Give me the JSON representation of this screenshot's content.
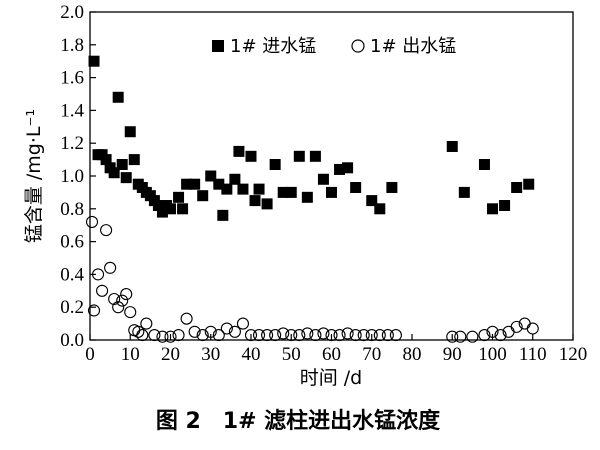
{
  "chart_data": {
    "type": "scatter",
    "xlabel": "时间 /d",
    "ylabel": "锰含量 /mg·L⁻¹",
    "caption": "图 2　1# 滤柱进出水锰浓度",
    "xlim": [
      0,
      120
    ],
    "ylim": [
      0,
      2.0
    ],
    "x_ticks": [
      "0",
      "10",
      "20",
      "30",
      "40",
      "50",
      "60",
      "70",
      "80",
      "90",
      "100",
      "110",
      "120"
    ],
    "y_ticks": [
      "0.0",
      "0.2",
      "0.4",
      "0.6",
      "0.8",
      "1.0",
      "1.2",
      "1.4",
      "1.6",
      "1.8",
      "2.0"
    ],
    "grid": false,
    "legend_position": "top",
    "series": [
      {
        "name": "1# 进水锰",
        "marker": "filled-square",
        "points": [
          [
            1,
            1.7
          ],
          [
            2,
            1.13
          ],
          [
            3,
            1.13
          ],
          [
            4,
            1.1
          ],
          [
            5,
            1.05
          ],
          [
            6,
            1.02
          ],
          [
            7,
            1.48
          ],
          [
            8,
            1.07
          ],
          [
            9,
            0.99
          ],
          [
            10,
            1.27
          ],
          [
            11,
            1.1
          ],
          [
            12,
            0.95
          ],
          [
            13,
            0.93
          ],
          [
            14,
            0.9
          ],
          [
            15,
            0.88
          ],
          [
            16,
            0.85
          ],
          [
            17,
            0.82
          ],
          [
            18,
            0.78
          ],
          [
            19,
            0.82
          ],
          [
            20,
            0.8
          ],
          [
            22,
            0.87
          ],
          [
            23,
            0.8
          ],
          [
            24,
            0.95
          ],
          [
            26,
            0.95
          ],
          [
            28,
            0.88
          ],
          [
            30,
            1.0
          ],
          [
            32,
            0.95
          ],
          [
            33,
            0.76
          ],
          [
            34,
            0.92
          ],
          [
            36,
            0.98
          ],
          [
            37,
            1.15
          ],
          [
            38,
            0.92
          ],
          [
            40,
            1.12
          ],
          [
            41,
            0.85
          ],
          [
            42,
            0.92
          ],
          [
            44,
            0.83
          ],
          [
            46,
            1.07
          ],
          [
            48,
            0.9
          ],
          [
            50,
            0.9
          ],
          [
            52,
            1.12
          ],
          [
            54,
            0.87
          ],
          [
            56,
            1.12
          ],
          [
            58,
            0.98
          ],
          [
            60,
            0.9
          ],
          [
            62,
            1.04
          ],
          [
            64,
            1.05
          ],
          [
            66,
            0.93
          ],
          [
            70,
            0.85
          ],
          [
            72,
            0.8
          ],
          [
            75,
            0.93
          ],
          [
            90,
            1.18
          ],
          [
            93,
            0.9
          ],
          [
            98,
            1.07
          ],
          [
            100,
            0.8
          ],
          [
            103,
            0.82
          ],
          [
            106,
            0.93
          ],
          [
            109,
            0.95
          ]
        ]
      },
      {
        "name": "1# 出水锰",
        "marker": "open-circle",
        "points": [
          [
            0.5,
            0.72
          ],
          [
            1,
            0.18
          ],
          [
            2,
            0.4
          ],
          [
            3,
            0.3
          ],
          [
            4,
            0.67
          ],
          [
            5,
            0.44
          ],
          [
            6,
            0.25
          ],
          [
            7,
            0.2
          ],
          [
            8,
            0.24
          ],
          [
            9,
            0.28
          ],
          [
            10,
            0.17
          ],
          [
            11,
            0.06
          ],
          [
            12,
            0.05
          ],
          [
            13,
            0.03
          ],
          [
            14,
            0.1
          ],
          [
            16,
            0.03
          ],
          [
            18,
            0.02
          ],
          [
            20,
            0.02
          ],
          [
            22,
            0.03
          ],
          [
            24,
            0.13
          ],
          [
            26,
            0.05
          ],
          [
            28,
            0.03
          ],
          [
            30,
            0.05
          ],
          [
            32,
            0.03
          ],
          [
            34,
            0.07
          ],
          [
            36,
            0.05
          ],
          [
            38,
            0.1
          ],
          [
            40,
            0.03
          ],
          [
            42,
            0.03
          ],
          [
            44,
            0.03
          ],
          [
            46,
            0.03
          ],
          [
            48,
            0.04
          ],
          [
            50,
            0.03
          ],
          [
            52,
            0.03
          ],
          [
            54,
            0.04
          ],
          [
            56,
            0.03
          ],
          [
            58,
            0.04
          ],
          [
            60,
            0.03
          ],
          [
            62,
            0.03
          ],
          [
            64,
            0.04
          ],
          [
            66,
            0.03
          ],
          [
            68,
            0.03
          ],
          [
            70,
            0.03
          ],
          [
            72,
            0.03
          ],
          [
            74,
            0.03
          ],
          [
            76,
            0.03
          ],
          [
            90,
            0.02
          ],
          [
            92,
            0.02
          ],
          [
            95,
            0.02
          ],
          [
            98,
            0.03
          ],
          [
            100,
            0.05
          ],
          [
            102,
            0.03
          ],
          [
            104,
            0.05
          ],
          [
            106,
            0.08
          ],
          [
            108,
            0.1
          ],
          [
            110,
            0.07
          ]
        ]
      }
    ]
  }
}
